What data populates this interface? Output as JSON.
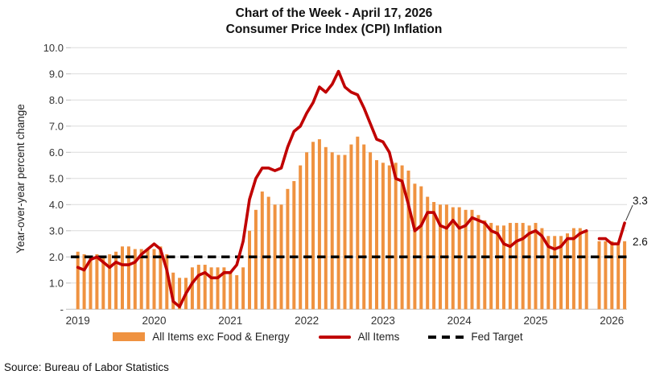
{
  "title": {
    "line1": "Chart of the Week - April 17, 2026",
    "line2": "Consumer Price Index (CPI) Inflation"
  },
  "source": "Source: Bureau of Labor Statistics",
  "chart_data": {
    "type": "bar+line",
    "x_start": "2019-01",
    "x_end": "2026-03",
    "missing_months": [
      "2025-10"
    ],
    "x_tick_labels": [
      "2019",
      "2020",
      "2021",
      "2022",
      "2023",
      "2024",
      "2025",
      "2026"
    ],
    "ylabel": "Year-over-year percent change",
    "y_tick_labels": [
      "10.0",
      "9.0",
      "8.0",
      "7.0",
      "6.0",
      "5.0",
      "4.0",
      "3.0",
      "2.0",
      "1.0",
      "-"
    ],
    "ylim": [
      0,
      10
    ],
    "grid": "horizontal",
    "legend_position": "bottom",
    "series": [
      {
        "name": "All Items exc Food & Energy",
        "type": "bar",
        "color": "#EF9240",
        "values": [
          2.2,
          2.1,
          2.0,
          2.1,
          2.0,
          2.1,
          2.2,
          2.4,
          2.4,
          2.3,
          2.3,
          2.3,
          2.3,
          2.4,
          2.1,
          1.4,
          1.2,
          1.2,
          1.6,
          1.7,
          1.7,
          1.6,
          1.6,
          1.6,
          1.4,
          1.3,
          1.6,
          3.0,
          3.8,
          4.5,
          4.3,
          4.0,
          4.0,
          4.6,
          4.9,
          5.5,
          6.0,
          6.4,
          6.5,
          6.2,
          6.0,
          5.9,
          5.9,
          6.3,
          6.6,
          6.3,
          6.0,
          5.7,
          5.6,
          5.5,
          5.6,
          5.5,
          5.3,
          4.8,
          4.7,
          4.3,
          4.1,
          4.0,
          4.0,
          3.9,
          3.9,
          3.8,
          3.8,
          3.6,
          3.4,
          3.3,
          3.2,
          3.2,
          3.3,
          3.3,
          3.3,
          3.2,
          3.3,
          3.1,
          2.8,
          2.8,
          2.8,
          2.9,
          3.1,
          3.1,
          3.0,
          null,
          2.6,
          2.6,
          2.6,
          2.5,
          2.6
        ]
      },
      {
        "name": "All Items",
        "type": "line",
        "color": "#C00000",
        "values": [
          1.6,
          1.5,
          1.9,
          2.0,
          1.8,
          1.6,
          1.8,
          1.7,
          1.7,
          1.8,
          2.1,
          2.3,
          2.5,
          2.3,
          1.5,
          0.3,
          0.1,
          0.6,
          1.0,
          1.3,
          1.4,
          1.2,
          1.2,
          1.4,
          1.4,
          1.7,
          2.6,
          4.2,
          5.0,
          5.4,
          5.4,
          5.3,
          5.4,
          6.2,
          6.8,
          7.0,
          7.5,
          7.9,
          8.5,
          8.3,
          8.6,
          9.1,
          8.5,
          8.3,
          8.2,
          7.7,
          7.1,
          6.5,
          6.4,
          6.0,
          5.0,
          4.9,
          4.0,
          3.0,
          3.2,
          3.7,
          3.7,
          3.2,
          3.1,
          3.4,
          3.1,
          3.2,
          3.5,
          3.4,
          3.3,
          3.0,
          2.9,
          2.5,
          2.4,
          2.6,
          2.7,
          2.9,
          3.0,
          2.8,
          2.4,
          2.3,
          2.4,
          2.7,
          2.7,
          2.9,
          3.0,
          null,
          2.7,
          2.7,
          2.5,
          2.5,
          3.3
        ]
      },
      {
        "name": "Fed Target",
        "type": "dashed-line",
        "color": "#000000",
        "value": 2.0
      }
    ],
    "annotations": [
      {
        "text": "3.3",
        "value": 3.3,
        "series": "All Items",
        "x": "2026-03",
        "placement": "above-with-leader"
      },
      {
        "text": "2.6",
        "value": 2.6,
        "series": "All Items exc Food & Energy",
        "x": "2026-03",
        "placement": "beside"
      }
    ],
    "colors": {
      "grid": "#dcdcdc",
      "axis": "#bfbfbf",
      "tick_text": "#333333",
      "annotation_text": "#111111"
    }
  }
}
